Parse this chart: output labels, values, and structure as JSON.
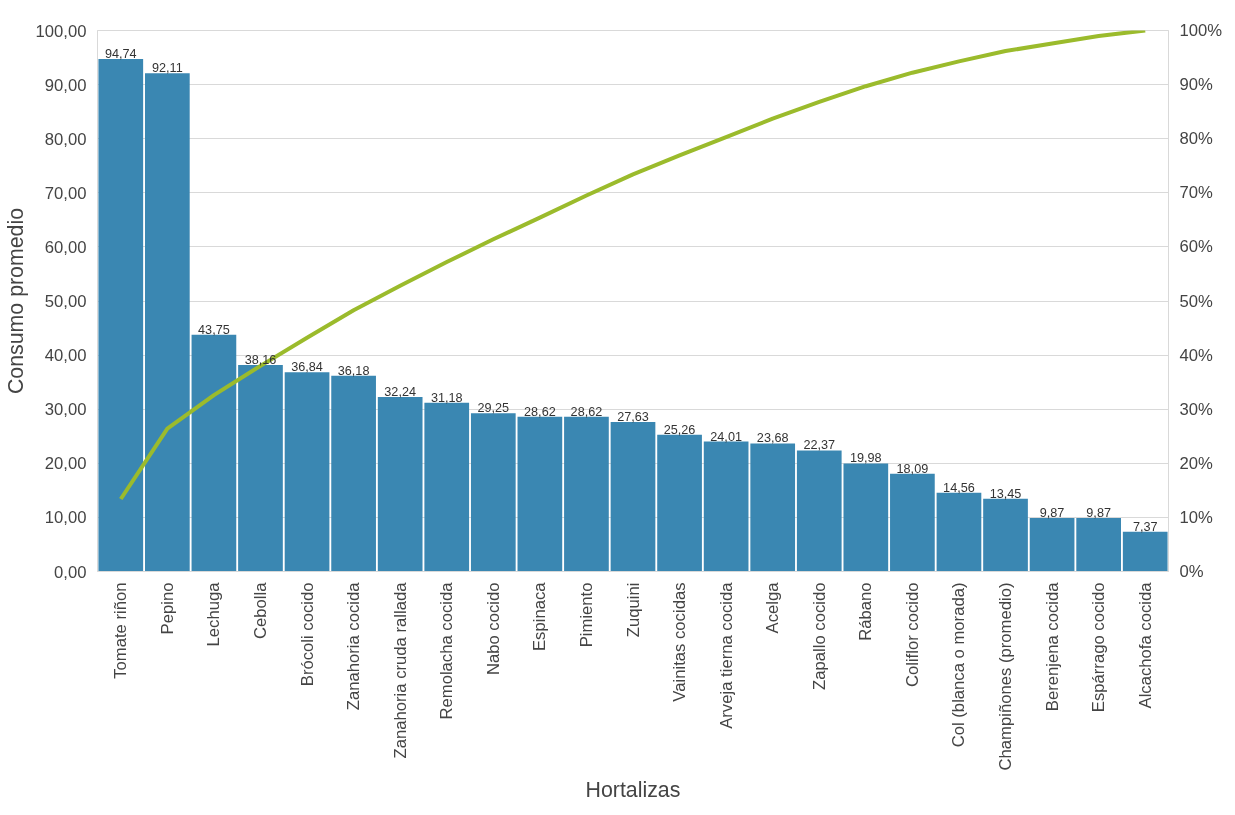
{
  "chart_data": {
    "type": "bar",
    "xlabel": "Hortalizas",
    "ylabel": "Consumo promedio",
    "categories": [
      "Tomate riñon",
      "Pepino",
      "Lechuga",
      "Cebolla",
      "Brócoli cocido",
      "Zanahoria cocida",
      "Zanahoria cruda rallada",
      "Remolacha cocida",
      "Nabo cocido",
      "Espinaca",
      "Pimiento",
      "Zuquini",
      "Vainitas cocidas",
      "Arveja tierna cocida",
      "Acelga",
      "Zapallo cocido",
      "Rábano",
      "Coliflor cocido",
      "Col (blanca o morada)",
      "Champiñones (promedio)",
      "Berenjena cocida",
      "Espárrago cocido",
      "Alcachofa cocida"
    ],
    "series": [
      {
        "color": "#3a87b2",
        "values": [
          94.74,
          92.11,
          43.75,
          38.16,
          36.84,
          36.18,
          32.24,
          31.18,
          29.25,
          28.62,
          28.62,
          27.63,
          25.26,
          24.01,
          23.68,
          22.37,
          19.98,
          18.09,
          14.56,
          13.45,
          9.87,
          9.87,
          7.37
        ],
        "value_labels": [
          "94,74",
          "92,11",
          "43,75",
          "38,16",
          "36,84",
          "36,18",
          "32,24",
          "31,18",
          "29,25",
          "28,62",
          "28,62",
          "27,63",
          "25,26",
          "24,01",
          "23,68",
          "22,37",
          "19,98",
          "18,09",
          "14,56",
          "13,45",
          "9,87",
          "9,87",
          "7,37"
        ]
      },
      {
        "type": "line",
        "axis": "y2",
        "color": "#9bbb2c",
        "values": [
          13.4,
          26.4,
          32.6,
          38.0,
          43.2,
          48.3,
          52.8,
          57.2,
          61.4,
          65.4,
          69.5,
          73.4,
          76.9,
          80.3,
          83.7,
          86.8,
          89.7,
          92.2,
          94.3,
          96.2,
          97.6,
          99.0,
          100
        ]
      }
    ],
    "ylim": [
      0,
      100
    ],
    "yticks": [
      {
        "value": 0,
        "label": "0,00"
      },
      {
        "value": 10,
        "label": "10,00"
      },
      {
        "value": 20,
        "label": "20,00"
      },
      {
        "value": 30,
        "label": "30,00"
      },
      {
        "value": 40,
        "label": "40,00"
      },
      {
        "value": 50,
        "label": "50,00"
      },
      {
        "value": 60,
        "label": "60,00"
      },
      {
        "value": 70,
        "label": "70,00"
      },
      {
        "value": 80,
        "label": "80,00"
      },
      {
        "value": 90,
        "label": "90,00"
      },
      {
        "value": 100,
        "label": "100,00"
      }
    ],
    "y2lim": [
      0,
      100
    ],
    "y2ticks": [
      {
        "value": 0,
        "label": "0%"
      },
      {
        "value": 10,
        "label": "10%"
      },
      {
        "value": 20,
        "label": "20%"
      },
      {
        "value": 30,
        "label": "30%"
      },
      {
        "value": 40,
        "label": "40%"
      },
      {
        "value": 50,
        "label": "50%"
      },
      {
        "value": 60,
        "label": "60%"
      },
      {
        "value": 70,
        "label": "70%"
      },
      {
        "value": 80,
        "label": "80%"
      },
      {
        "value": 90,
        "label": "90%"
      },
      {
        "value": 100,
        "label": "100%"
      }
    ],
    "grid": "y",
    "marker": "none",
    "line_style": "solid"
  }
}
